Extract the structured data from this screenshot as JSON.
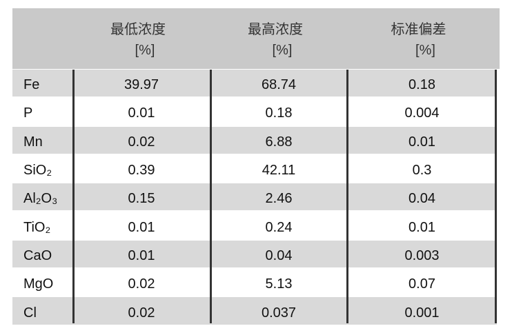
{
  "table": {
    "header": [
      {
        "title": "最低浓度",
        "unit": "[%]"
      },
      {
        "title": "最高浓度",
        "unit": "[%]"
      },
      {
        "title": "标准偏差",
        "unit": "[%]"
      }
    ],
    "rows": [
      [
        "Fe",
        "39.97",
        "68.74",
        "0.18"
      ],
      [
        "P",
        "0.01",
        "0.18",
        "0.004"
      ],
      [
        "Mn",
        "0.02",
        "6.88",
        "0.01"
      ],
      [
        "SiO₂",
        "0.39",
        "42.11",
        "0.3"
      ],
      [
        "Al₂O₃",
        "0.15",
        "2.46",
        "0.04"
      ],
      [
        "TiO₂",
        "0.01",
        "0.24",
        "0.01"
      ],
      [
        "CaO",
        "0.01",
        "0.04",
        "0.003"
      ],
      [
        "MgO",
        "0.02",
        "5.13",
        "0.07"
      ],
      [
        "Cl",
        "0.02",
        "0.037",
        "0.001"
      ]
    ]
  }
}
